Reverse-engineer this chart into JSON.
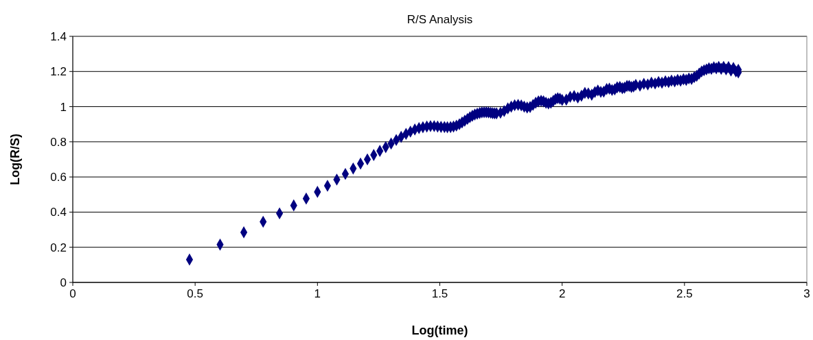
{
  "chart_data": {
    "type": "scatter",
    "title": "R/S Analysis",
    "xlabel": "Log(time)",
    "ylabel": "Log(R/S)",
    "xlim": [
      0,
      3
    ],
    "xticks": [
      0,
      0.5,
      1,
      1.5,
      2,
      2.5,
      3
    ],
    "ylim": [
      0,
      1.4
    ],
    "yticks": [
      0,
      0.2,
      0.4,
      0.6,
      0.8,
      1,
      1.2,
      1.4
    ],
    "grid": "y",
    "marker": "diamond",
    "series": [
      {
        "color": "#000080",
        "x": [
          0.477,
          0.602,
          0.699,
          0.778,
          0.845,
          0.903,
          0.954,
          1.0,
          1.041,
          1.079,
          1.114,
          1.146,
          1.176,
          1.204,
          1.23,
          1.255,
          1.279,
          1.301,
          1.322,
          1.342,
          1.362,
          1.38,
          1.398,
          1.415,
          1.431,
          1.447,
          1.462,
          1.477,
          1.491,
          1.505,
          1.519,
          1.531,
          1.544,
          1.556,
          1.568,
          1.58,
          1.591,
          1.602,
          1.613,
          1.623,
          1.633,
          1.643,
          1.653,
          1.663,
          1.672,
          1.681,
          1.69,
          1.699,
          1.708,
          1.716,
          1.724,
          1.732,
          1.748,
          1.763,
          1.778,
          1.792,
          1.806,
          1.82,
          1.833,
          1.845,
          1.857,
          1.869,
          1.881,
          1.892,
          1.903,
          1.914,
          1.924,
          1.934,
          1.944,
          1.954,
          1.964,
          1.973,
          1.982,
          1.991,
          2.0,
          2.017,
          2.033,
          2.049,
          2.064,
          2.079,
          2.093,
          2.107,
          2.121,
          2.134,
          2.146,
          2.158,
          2.17,
          2.182,
          2.193,
          2.204,
          2.215,
          2.225,
          2.236,
          2.246,
          2.255,
          2.265,
          2.274,
          2.283,
          2.292,
          2.301,
          2.318,
          2.334,
          2.35,
          2.365,
          2.38,
          2.394,
          2.408,
          2.422,
          2.435,
          2.447,
          2.46,
          2.472,
          2.484,
          2.496,
          2.507,
          2.518,
          2.529,
          2.54,
          2.55,
          2.56,
          2.57,
          2.58,
          2.59,
          2.6,
          2.61,
          2.62,
          2.63,
          2.64,
          2.65,
          2.66,
          2.67,
          2.68,
          2.69,
          2.7,
          2.71,
          2.72,
          2.72
        ],
        "values": [
          0.13,
          0.215,
          0.285,
          0.345,
          0.393,
          0.438,
          0.477,
          0.515,
          0.55,
          0.585,
          0.617,
          0.648,
          0.676,
          0.7,
          0.725,
          0.748,
          0.77,
          0.79,
          0.81,
          0.828,
          0.845,
          0.858,
          0.87,
          0.878,
          0.883,
          0.887,
          0.889,
          0.889,
          0.887,
          0.885,
          0.884,
          0.883,
          0.884,
          0.887,
          0.892,
          0.9,
          0.91,
          0.92,
          0.93,
          0.94,
          0.948,
          0.955,
          0.96,
          0.964,
          0.967,
          0.968,
          0.968,
          0.967,
          0.965,
          0.963,
          0.962,
          0.962,
          0.965,
          0.975,
          0.99,
          1.0,
          1.008,
          1.01,
          1.007,
          1.0,
          0.995,
          0.998,
          1.01,
          1.022,
          1.03,
          1.033,
          1.03,
          1.022,
          1.018,
          1.022,
          1.033,
          1.043,
          1.048,
          1.045,
          1.038,
          1.04,
          1.056,
          1.06,
          1.052,
          1.062,
          1.078,
          1.075,
          1.068,
          1.083,
          1.092,
          1.084,
          1.085,
          1.1,
          1.102,
          1.095,
          1.098,
          1.11,
          1.112,
          1.105,
          1.108,
          1.118,
          1.118,
          1.112,
          1.115,
          1.124,
          1.12,
          1.13,
          1.126,
          1.136,
          1.132,
          1.14,
          1.136,
          1.144,
          1.14,
          1.148,
          1.144,
          1.152,
          1.148,
          1.156,
          1.152,
          1.16,
          1.158,
          1.168,
          1.175,
          1.188,
          1.2,
          1.207,
          1.212,
          1.218,
          1.215,
          1.224,
          1.218,
          1.226,
          1.215,
          1.226,
          1.212,
          1.225,
          1.205,
          1.22,
          1.2,
          1.21,
          1.195
        ]
      }
    ]
  }
}
